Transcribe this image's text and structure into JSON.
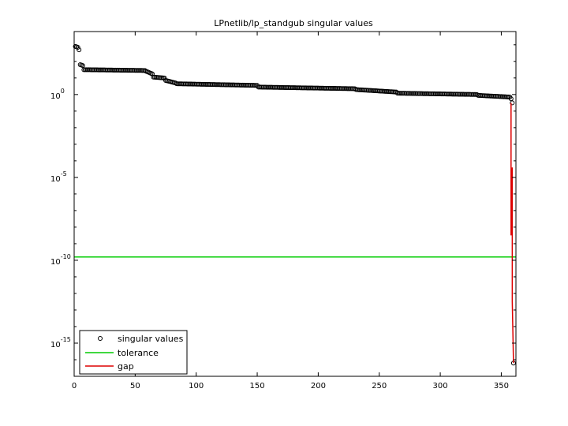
{
  "chart_data": {
    "type": "scatter",
    "title": "LPnetlib/lp_standgub singular values",
    "xlabel": "",
    "ylabel": "",
    "y_scale": "log",
    "xlim": [
      0,
      362
    ],
    "ylim_exp": [
      -17,
      3.8
    ],
    "x_ticks": [
      0,
      50,
      100,
      150,
      200,
      250,
      300,
      350
    ],
    "x_tick_labels": [
      "0",
      "50",
      "100",
      "150",
      "200",
      "250",
      "300",
      "350"
    ],
    "y_ticks": [
      0,
      -5,
      -10,
      -15
    ],
    "y_tick_labels": {
      "base": "10",
      "exponents": [
        "0",
        "-5",
        "-10",
        "-15"
      ]
    },
    "grid": false,
    "legend_position": "bottom-left",
    "series": [
      {
        "name": "singular values",
        "marker": "circle",
        "color": "#000000",
        "log10_segments": [
          {
            "x_from": 1,
            "x_to": 3,
            "log10_from": 2.9,
            "log10_to": 2.85
          },
          {
            "x_from": 4,
            "x_to": 4,
            "log10_from": 2.7,
            "log10_to": 2.7
          },
          {
            "x_from": 5,
            "x_to": 7,
            "log10_from": 1.8,
            "log10_to": 1.75
          },
          {
            "x_from": 8,
            "x_to": 58,
            "log10_from": 1.5,
            "log10_to": 1.45
          },
          {
            "x_from": 59,
            "x_to": 64,
            "log10_from": 1.4,
            "log10_to": 1.25
          },
          {
            "x_from": 65,
            "x_to": 74,
            "log10_from": 1.05,
            "log10_to": 1.0
          },
          {
            "x_from": 75,
            "x_to": 83,
            "log10_from": 0.85,
            "log10_to": 0.7
          },
          {
            "x_from": 84,
            "x_to": 150,
            "log10_from": 0.65,
            "log10_to": 0.55
          },
          {
            "x_from": 151,
            "x_to": 230,
            "log10_from": 0.45,
            "log10_to": 0.35
          },
          {
            "x_from": 231,
            "x_to": 264,
            "log10_from": 0.3,
            "log10_to": 0.15
          },
          {
            "x_from": 265,
            "x_to": 330,
            "log10_from": 0.08,
            "log10_to": 0.0
          },
          {
            "x_from": 331,
            "x_to": 357,
            "log10_from": -0.05,
            "log10_to": -0.15
          }
        ],
        "tail_points": [
          {
            "x": 358,
            "log10": -0.25
          },
          {
            "x": 359,
            "log10": -0.5
          },
          {
            "x": 360,
            "log10": -16.2
          }
        ]
      },
      {
        "name": "tolerance",
        "type": "hline",
        "color": "#00cc00",
        "log10_value": -9.8
      },
      {
        "name": "gap",
        "type": "line",
        "color": "#dd0000",
        "points": [
          {
            "x": 358,
            "log10": -0.5
          },
          {
            "x": 358,
            "log10": -8.5
          },
          {
            "x": 359,
            "log10": -4.4
          },
          {
            "x": 359,
            "log10": -12.5
          },
          {
            "x": 360,
            "log10": -16.2
          }
        ]
      }
    ]
  }
}
